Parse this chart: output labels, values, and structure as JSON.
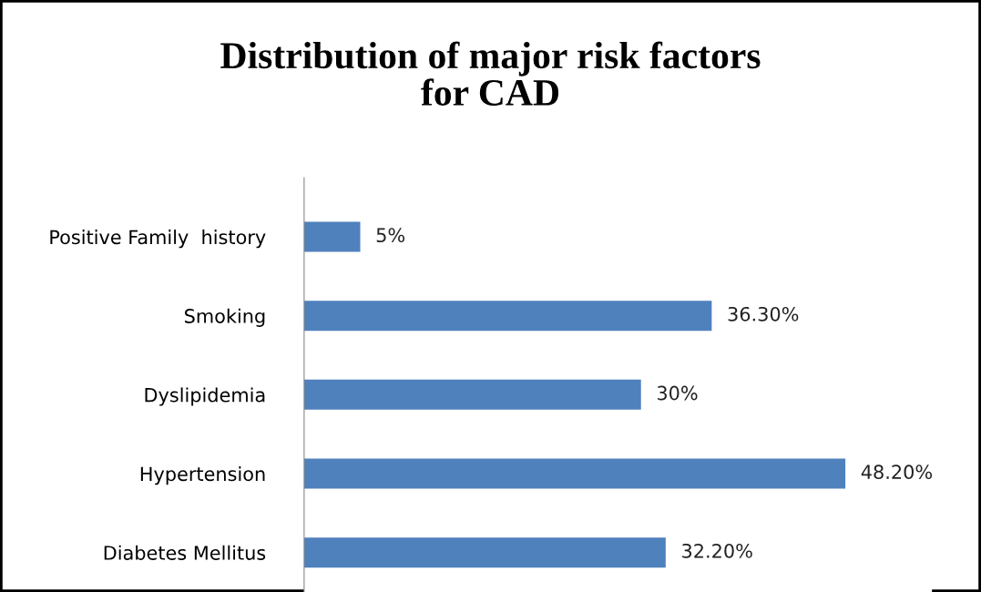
{
  "chart_data": {
    "type": "bar",
    "orientation": "horizontal",
    "title": "Distribution of major risk factors\nfor CAD",
    "categories": [
      "Positive Family  history",
      "Smoking",
      "Dyslipidemia",
      "Hypertension",
      "Diabetes Mellitus"
    ],
    "values": [
      5,
      36.3,
      30,
      48.2,
      32.2
    ],
    "value_labels": [
      "5%",
      "36.30%",
      "30%",
      "48.20%",
      "32.20%"
    ],
    "color": "#4f81bd",
    "grid": false,
    "legend": false
  }
}
